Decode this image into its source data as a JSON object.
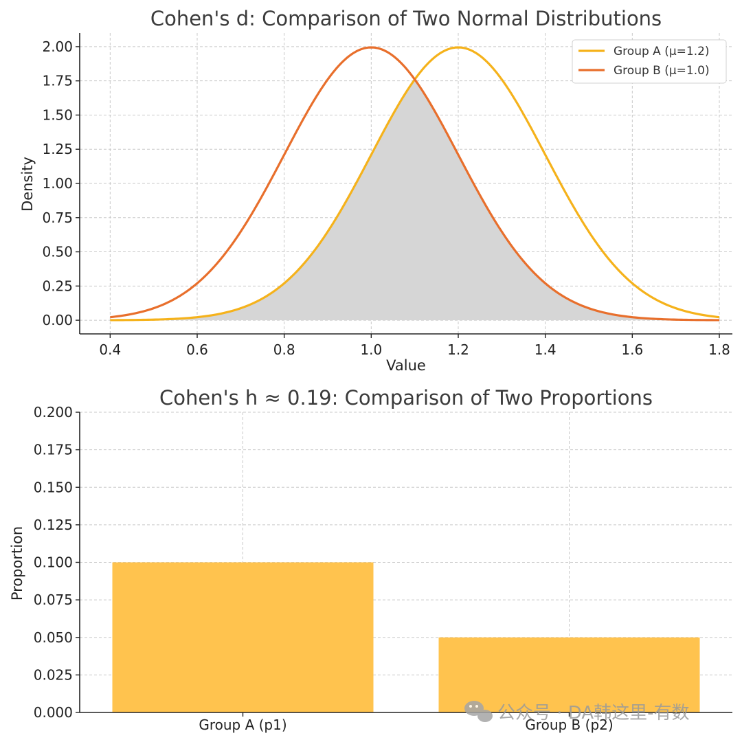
{
  "chart_data": [
    {
      "type": "line",
      "title": "Cohen's d: Comparison of Two Normal Distributions",
      "xlabel": "Value",
      "ylabel": "Density",
      "xlim": [
        0.33,
        1.83
      ],
      "ylim": [
        -0.1,
        2.1
      ],
      "xticks": [
        "0.4",
        "0.6",
        "0.8",
        "1.0",
        "1.2",
        "1.4",
        "1.6",
        "1.8"
      ],
      "yticks": [
        "0.00",
        "0.25",
        "0.50",
        "0.75",
        "1.00",
        "1.25",
        "1.50",
        "1.75",
        "2.00"
      ],
      "x_range": [
        0.4,
        1.8
      ],
      "series": [
        {
          "name": "Group A (μ=1.2)",
          "mean": 1.2,
          "sd": 0.2,
          "color": "#f5b21b"
        },
        {
          "name": "Group B (μ=1.0)",
          "mean": 1.0,
          "sd": 0.2,
          "color": "#e86f2c"
        }
      ],
      "overlap_fill_color": "#d6d6d6",
      "grid": true,
      "legend": "top-right"
    },
    {
      "type": "bar",
      "title": "Cohen's h ≈ 0.19: Comparison of Two Proportions",
      "xlabel": "",
      "ylabel": "Proportion",
      "categories": [
        "Group A (p1)",
        "Group B (p2)"
      ],
      "values": [
        0.1,
        0.05
      ],
      "ylim": [
        0,
        0.2
      ],
      "yticks": [
        "0.000",
        "0.025",
        "0.050",
        "0.075",
        "0.100",
        "0.125",
        "0.150",
        "0.175",
        "0.200"
      ],
      "color": "#ffc34e",
      "grid": true
    }
  ],
  "watermark": {
    "text": "公众号 · DA韩这里-有数",
    "icon": "wechat-icon"
  }
}
